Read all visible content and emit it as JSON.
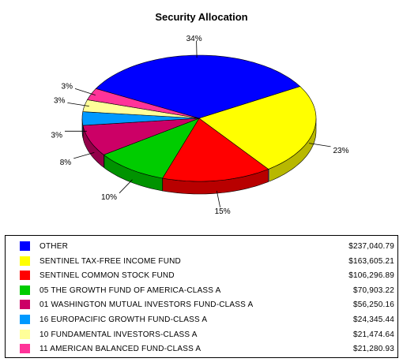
{
  "chart_data": {
    "type": "pie",
    "title": "Security Allocation",
    "slices": [
      {
        "label": "OTHER",
        "value": 237040.79,
        "value_text": "$237,040.79",
        "percent_label": "34%",
        "color": "#0000ff"
      },
      {
        "label": "SENTINEL TAX-FREE INCOME FUND",
        "value": 163605.21,
        "value_text": "$163,605.21",
        "percent_label": "23%",
        "color": "#ffff00"
      },
      {
        "label": "SENTINEL COMMON STOCK FUND",
        "value": 106296.89,
        "value_text": "$106,296.89",
        "percent_label": "15%",
        "color": "#ff0000"
      },
      {
        "label": "05 THE GROWTH FUND OF AMERICA-CLASS A",
        "value": 70903.22,
        "value_text": "$70,903.22",
        "percent_label": "10%",
        "color": "#00cc00"
      },
      {
        "label": "01 WASHINGTON MUTUAL INVESTORS FUND-CLASS A",
        "value": 56250.16,
        "value_text": "$56,250.16",
        "percent_label": "8%",
        "color": "#cc0066"
      },
      {
        "label": "16 EUROPACIFIC GROWTH FUND-CLASS A",
        "value": 24345.44,
        "value_text": "$24,345.44",
        "percent_label": "3%",
        "color": "#0099ff"
      },
      {
        "label": "10 FUNDAMENTAL INVESTORS-CLASS A",
        "value": 21474.64,
        "value_text": "$21,474.64",
        "percent_label": "3%",
        "color": "#ffff99"
      },
      {
        "label": "11 AMERICAN BALANCED FUND-CLASS A",
        "value": 21280.93,
        "value_text": "$21,280.93",
        "percent_label": "3%",
        "color": "#ff3399"
      }
    ],
    "legend_position": "bottom"
  }
}
